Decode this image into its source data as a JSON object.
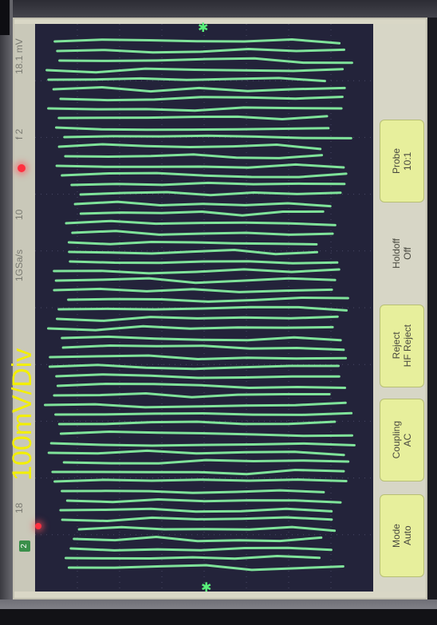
{
  "status_bar": {
    "sample_rate": "1GSa/s",
    "stop_time": "10",
    "delay": "f 2",
    "trigger_level": "18.1 mV",
    "channel_indicator": "2",
    "channel_scale_prefix": "18"
  },
  "overlay": {
    "scale_annotation": "100mV/Div"
  },
  "softkeys": [
    {
      "label": "Mode\nAuto",
      "icon": "down-arrow"
    },
    {
      "label": "Coupling\nAC",
      "icon": "down-arrow"
    },
    {
      "label": "Reject\nHF Reject",
      "icon": "down-arrow"
    },
    {
      "label": "Holdoff\nOff",
      "icon": "rotary-knob"
    },
    {
      "label": "Probe\n10:1",
      "icon": "rotary-knob"
    }
  ],
  "colors": {
    "trace": "#7fe39a",
    "graticule_bg": "#23233a",
    "softkey_bg": "#e7ef9c",
    "annotation": "#f3ef00"
  }
}
